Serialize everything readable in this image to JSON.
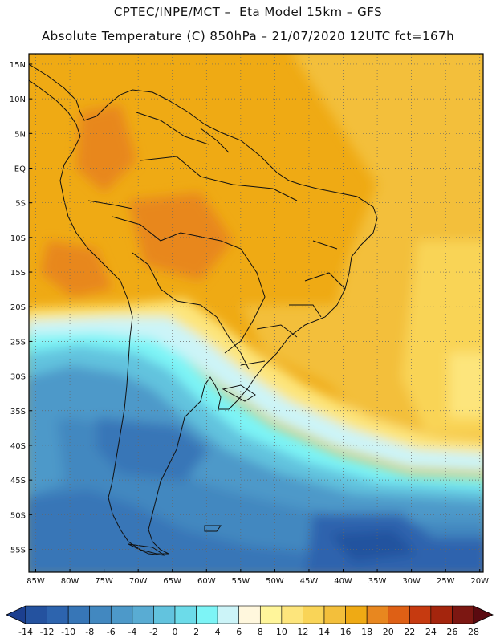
{
  "header": {
    "line1": "CPTEC/INPE/MCT –  Eta Model 15km – GFS",
    "line2": "Absolute Temperature (C) 850hPa – 21/07/2020 12UTC fct=167h"
  },
  "map": {
    "lat_labels": [
      "15N",
      "10N",
      "5N",
      "EQ",
      "5S",
      "10S",
      "15S",
      "20S",
      "25S",
      "30S",
      "35S",
      "40S",
      "45S",
      "50S",
      "55S"
    ],
    "lon_labels": [
      "85W",
      "80W",
      "75W",
      "70W",
      "65W",
      "60W",
      "55W",
      "50W",
      "45W",
      "40W",
      "35W",
      "30W",
      "25W",
      "20W"
    ]
  },
  "colorbar": {
    "labels": [
      "-14",
      "-12",
      "-10",
      "-8",
      "-6",
      "-4",
      "-2",
      "0",
      "2",
      "4",
      "6",
      "8",
      "10",
      "12",
      "14",
      "16",
      "18",
      "20",
      "22",
      "24",
      "26",
      "28"
    ],
    "colors": [
      "#1c3f8f",
      "#24529f",
      "#2d64ae",
      "#3776b7",
      "#4288c0",
      "#4d99c9",
      "#59acd3",
      "#62c3de",
      "#6cdbe9",
      "#7df4f6",
      "#ccf4f8",
      "#fff7dd",
      "#fff59a",
      "#fde57c",
      "#f9d457",
      "#f3bf3b",
      "#efaa14",
      "#e8871f",
      "#de6015",
      "#c63a10",
      "#a4250d",
      "#7c1712",
      "#5a0a10"
    ]
  }
}
